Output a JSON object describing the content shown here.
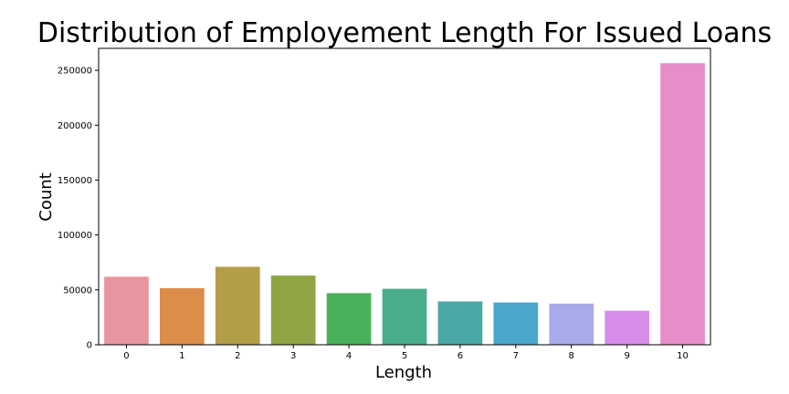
{
  "chart_data": {
    "type": "bar",
    "title": "Distribution of Employement Length For Issued Loans",
    "xlabel": "Length",
    "ylabel": "Count",
    "categories": [
      "0",
      "1",
      "2",
      "3",
      "4",
      "5",
      "6",
      "7",
      "8",
      "9",
      "10"
    ],
    "values": [
      62000,
      51500,
      71000,
      63000,
      47000,
      51000,
      39500,
      38500,
      37500,
      31000,
      256500
    ],
    "ylim": [
      0,
      270000
    ],
    "yticks": [
      0,
      50000,
      100000,
      150000,
      200000,
      250000
    ],
    "ytick_labels": [
      "0",
      "50000",
      "100000",
      "150000",
      "200000",
      "250000"
    ],
    "grid": false,
    "legend": "none",
    "colors": [
      "#e8959f",
      "#dc8d4a",
      "#b39d48",
      "#8fa545",
      "#4ab05a",
      "#4aae8e",
      "#4aa8a6",
      "#4aa6cc",
      "#a8aaea",
      "#d68eea",
      "#e78dc8"
    ]
  }
}
